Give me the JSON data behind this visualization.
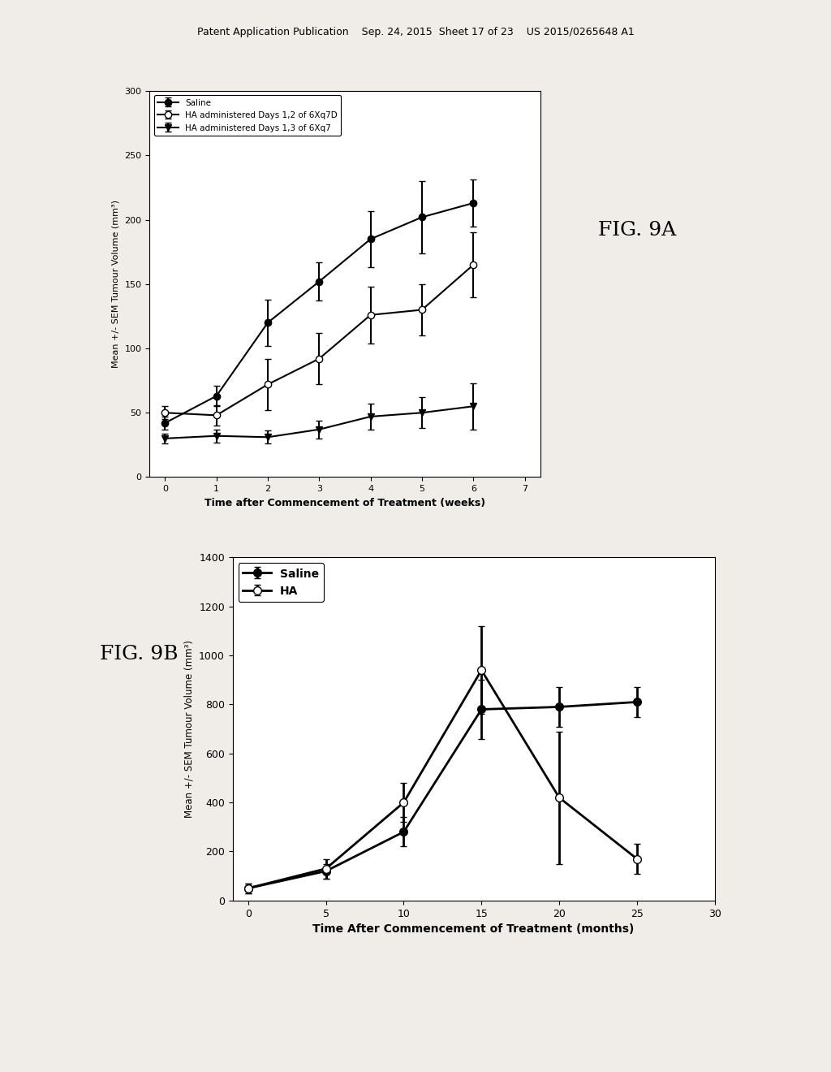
{
  "fig9a": {
    "xlabel": "Time after Commencement of Treatment (weeks)",
    "ylabel": "Mean +/- SEM Tumour Volume (mm³)",
    "xlim": [
      -0.3,
      7.3
    ],
    "ylim": [
      0,
      300
    ],
    "xticks": [
      0,
      1,
      2,
      3,
      4,
      5,
      6,
      7
    ],
    "yticks": [
      0,
      50,
      100,
      150,
      200,
      250,
      300
    ],
    "series": [
      {
        "label": "Saline",
        "x": [
          0,
          1,
          2,
          3,
          4,
          5,
          6
        ],
        "y": [
          42,
          63,
          120,
          152,
          185,
          202,
          213
        ],
        "yerr": [
          5,
          8,
          18,
          15,
          22,
          28,
          18
        ],
        "marker": "o",
        "fillstyle": "full",
        "color": "black",
        "linewidth": 1.5,
        "markersize": 6
      },
      {
        "label": "HA administered Days 1,2 of 6Xq7D",
        "x": [
          0,
          1,
          2,
          3,
          4,
          5,
          6
        ],
        "y": [
          50,
          48,
          72,
          92,
          126,
          130,
          165
        ],
        "yerr": [
          5,
          8,
          20,
          20,
          22,
          20,
          25
        ],
        "marker": "o",
        "fillstyle": "none",
        "color": "black",
        "linewidth": 1.5,
        "markersize": 6
      },
      {
        "label": "HA administered Days 1,3 of 6Xq7",
        "x": [
          0,
          1,
          2,
          3,
          4,
          5,
          6
        ],
        "y": [
          30,
          32,
          31,
          37,
          47,
          50,
          55
        ],
        "yerr": [
          4,
          5,
          5,
          7,
          10,
          12,
          18
        ],
        "marker": "v",
        "fillstyle": "full",
        "color": "black",
        "linewidth": 1.5,
        "markersize": 6
      }
    ]
  },
  "fig9b": {
    "xlabel": "Time After Commencement of Treatment (months)",
    "ylabel": "Mean +/- SEM Tumour Volume (mm³)",
    "xlim": [
      -1,
      30
    ],
    "ylim": [
      0,
      1400
    ],
    "xticks": [
      0,
      5,
      10,
      15,
      20,
      25,
      30
    ],
    "yticks": [
      0,
      200,
      400,
      600,
      800,
      1000,
      1200,
      1400
    ],
    "series": [
      {
        "label": "Saline",
        "x": [
          0,
          5,
          10,
          15,
          20,
          25
        ],
        "y": [
          50,
          120,
          280,
          780,
          790,
          810
        ],
        "yerr": [
          20,
          30,
          60,
          120,
          80,
          60
        ],
        "marker": "o",
        "fillstyle": "full",
        "color": "black",
        "linewidth": 2,
        "markersize": 7
      },
      {
        "label": "HA",
        "x": [
          0,
          5,
          10,
          15,
          20,
          25
        ],
        "y": [
          50,
          130,
          400,
          940,
          420,
          170
        ],
        "yerr": [
          20,
          40,
          80,
          180,
          270,
          60
        ],
        "marker": "o",
        "fillstyle": "none",
        "color": "black",
        "linewidth": 2,
        "markersize": 7
      }
    ]
  },
  "header_text": "Patent Application Publication    Sep. 24, 2015  Sheet 17 of 23    US 2015/0265648 A1",
  "fig9a_label": "FIG. 9A",
  "fig9b_label": "FIG. 9B",
  "background_color": "#f0ede8",
  "plot_bg_color": "#ffffff"
}
